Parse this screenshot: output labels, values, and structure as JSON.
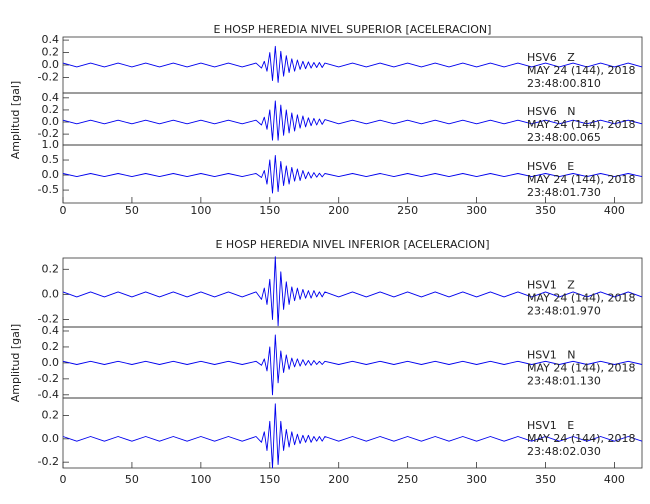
{
  "chart_data": [
    {
      "type": "line",
      "title": "E HOSP HEREDIA NIVEL SUPERIOR [ACELERACION]",
      "ylabel": "Amplitud [gal]",
      "xlim": [
        0,
        420
      ],
      "xticks": [
        0,
        50,
        100,
        150,
        200,
        250,
        300,
        350,
        400
      ],
      "x": [
        0,
        10,
        20,
        30,
        40,
        50,
        60,
        70,
        80,
        90,
        100,
        110,
        120,
        130,
        140,
        144,
        146,
        148,
        150,
        152,
        154,
        156,
        158,
        160,
        162,
        164,
        166,
        168,
        170,
        172,
        174,
        176,
        178,
        180,
        182,
        184,
        186,
        188,
        190,
        200,
        210,
        220,
        230,
        240,
        250,
        260,
        270,
        280,
        290,
        300,
        310,
        320,
        330,
        340,
        350,
        360,
        370,
        380,
        390,
        400,
        410,
        420
      ],
      "panels": [
        {
          "label": "HSV6   Z",
          "date": "MAY 24 (144), 2018",
          "time": "23:48:00.810",
          "color": "#0000ee",
          "ylim": [
            -0.45,
            0.45
          ],
          "yticks": [
            0.4,
            0.2,
            {
              "value": 0,
              "label": "0.0"
            },
            -0.2
          ],
          "values": [
            0.03,
            -0.03,
            0.03,
            -0.03,
            0.03,
            -0.03,
            0.03,
            -0.03,
            0.03,
            -0.03,
            0.03,
            -0.03,
            0.03,
            -0.03,
            0.03,
            -0.05,
            0.06,
            -0.1,
            0.2,
            -0.25,
            0.3,
            -0.28,
            0.22,
            -0.18,
            0.15,
            -0.12,
            0.1,
            -0.1,
            0.08,
            -0.07,
            0.06,
            -0.06,
            0.05,
            -0.05,
            0.04,
            -0.04,
            0.04,
            -0.04,
            0.03,
            -0.03,
            0.03,
            -0.03,
            0.03,
            -0.03,
            0.03,
            -0.03,
            0.03,
            -0.03,
            0.03,
            -0.03,
            0.03,
            -0.03,
            0.03,
            -0.03,
            0.03,
            -0.03,
            0.03,
            -0.03,
            0.03,
            -0.03,
            0.03,
            -0.03
          ]
        },
        {
          "label": "HSV6   N",
          "date": "MAY 24 (144), 2018",
          "time": "23:48:00.065",
          "color": "#0000ee",
          "ylim": [
            -0.38,
            0.48
          ],
          "yticks": [
            0.4,
            0.2,
            {
              "value": 0,
              "label": "0.0"
            },
            -0.2
          ],
          "values": [
            0.03,
            -0.03,
            0.03,
            -0.03,
            0.03,
            -0.03,
            0.03,
            -0.03,
            0.03,
            -0.03,
            0.03,
            -0.03,
            0.03,
            -0.03,
            0.03,
            -0.05,
            0.08,
            -0.12,
            0.2,
            -0.3,
            0.35,
            -0.3,
            0.28,
            -0.22,
            0.2,
            -0.18,
            0.15,
            -0.15,
            0.12,
            -0.1,
            0.1,
            -0.08,
            0.07,
            -0.06,
            0.06,
            -0.05,
            0.05,
            -0.04,
            0.04,
            -0.03,
            0.03,
            -0.03,
            0.03,
            -0.03,
            0.03,
            -0.03,
            0.03,
            -0.03,
            0.03,
            -0.03,
            0.03,
            -0.03,
            0.03,
            -0.03,
            0.03,
            -0.03,
            0.03,
            -0.03,
            0.03,
            -0.03,
            0.03,
            -0.03
          ]
        },
        {
          "label": "HSV6   E",
          "date": "MAY 24 (144), 2018",
          "time": "23:48:01.730",
          "color": "#0000ee",
          "ylim": [
            -0.93,
            1.0
          ],
          "yticks": [
            {
              "value": 1,
              "label": "1.0"
            },
            0.5,
            {
              "value": 0,
              "label": "0.0"
            },
            -0.5
          ],
          "values": [
            0.05,
            -0.05,
            0.05,
            -0.05,
            0.05,
            -0.05,
            0.05,
            -0.05,
            0.05,
            -0.05,
            0.05,
            -0.05,
            0.05,
            -0.05,
            0.05,
            -0.08,
            0.15,
            -0.3,
            0.5,
            -0.6,
            0.65,
            -0.55,
            0.45,
            -0.35,
            0.3,
            -0.3,
            0.25,
            -0.2,
            0.2,
            -0.18,
            0.15,
            -0.12,
            0.1,
            -0.1,
            0.08,
            -0.07,
            0.06,
            -0.06,
            0.05,
            -0.05,
            0.05,
            -0.05,
            0.05,
            -0.05,
            0.05,
            -0.05,
            0.05,
            -0.05,
            0.05,
            -0.05,
            0.05,
            -0.05,
            0.05,
            -0.05,
            0.05,
            -0.05,
            0.05,
            -0.05,
            0.05,
            -0.05,
            0.05,
            -0.05
          ]
        }
      ]
    },
    {
      "type": "line",
      "title": "E HOSP HEREDIA NIVEL INFERIOR [ACELERACION]",
      "ylabel": "Amplitud [gal]",
      "xlim": [
        0,
        420
      ],
      "xticks": [
        0,
        50,
        100,
        150,
        200,
        250,
        300,
        350,
        400
      ],
      "x": [
        0,
        10,
        20,
        30,
        40,
        50,
        60,
        70,
        80,
        90,
        100,
        110,
        120,
        130,
        140,
        144,
        146,
        148,
        150,
        152,
        154,
        156,
        158,
        160,
        162,
        164,
        166,
        168,
        170,
        172,
        174,
        176,
        178,
        180,
        182,
        184,
        186,
        188,
        190,
        200,
        210,
        220,
        230,
        240,
        250,
        260,
        270,
        280,
        290,
        300,
        310,
        320,
        330,
        340,
        350,
        360,
        370,
        380,
        390,
        400,
        410,
        420
      ],
      "panels": [
        {
          "label": "HSV1   Z",
          "date": "MAY 24 (144), 2018",
          "time": "23:48:01.970",
          "color": "#0000ee",
          "ylim": [
            -0.26,
            0.29
          ],
          "yticks": [
            0.2,
            {
              "value": 0,
              "label": "0.0"
            },
            -0.2
          ],
          "values": [
            0.02,
            -0.02,
            0.02,
            -0.02,
            0.02,
            -0.02,
            0.02,
            -0.02,
            0.02,
            -0.02,
            0.02,
            -0.02,
            0.02,
            -0.02,
            0.02,
            -0.04,
            0.05,
            -0.08,
            0.12,
            -0.2,
            0.3,
            -0.25,
            0.18,
            -0.12,
            0.1,
            -0.08,
            0.06,
            -0.05,
            0.05,
            -0.04,
            0.04,
            -0.03,
            0.03,
            -0.03,
            0.03,
            -0.02,
            0.02,
            -0.02,
            0.02,
            -0.02,
            0.02,
            -0.02,
            0.02,
            -0.02,
            0.02,
            -0.02,
            0.02,
            -0.02,
            0.02,
            -0.02,
            0.02,
            -0.02,
            0.02,
            -0.02,
            0.02,
            -0.02,
            0.02,
            -0.02,
            0.02,
            -0.02,
            0.02,
            -0.02
          ]
        },
        {
          "label": "HSV1   N",
          "date": "MAY 24 (144), 2018",
          "time": "23:48:01.130",
          "color": "#0000ee",
          "ylim": [
            -0.44,
            0.45
          ],
          "yticks": [
            0.4,
            0.2,
            {
              "value": 0,
              "label": "0.0"
            },
            -0.2,
            -0.4
          ],
          "values": [
            0.02,
            -0.02,
            0.02,
            -0.02,
            0.02,
            -0.02,
            0.02,
            -0.02,
            0.02,
            -0.02,
            0.02,
            -0.02,
            0.02,
            -0.02,
            0.02,
            -0.03,
            0.05,
            -0.1,
            0.2,
            -0.4,
            0.35,
            -0.25,
            0.15,
            -0.12,
            0.1,
            -0.08,
            0.06,
            -0.05,
            0.05,
            -0.04,
            0.04,
            -0.03,
            0.03,
            -0.03,
            0.03,
            -0.02,
            0.02,
            -0.02,
            0.02,
            -0.02,
            0.02,
            -0.02,
            0.02,
            -0.02,
            0.02,
            -0.02,
            0.02,
            -0.02,
            0.02,
            -0.02,
            0.02,
            -0.02,
            0.02,
            -0.02,
            0.02,
            -0.02,
            0.02,
            -0.02,
            0.02,
            -0.02,
            0.02,
            -0.02
          ]
        },
        {
          "label": "HSV1   E",
          "date": "MAY 24 (144), 2018",
          "time": "23:48:02.030",
          "color": "#0000ee",
          "ylim": [
            -0.25,
            0.35
          ],
          "yticks": [
            0.2,
            {
              "value": 0,
              "label": "0.0"
            },
            -0.2
          ],
          "values": [
            0.02,
            -0.02,
            0.02,
            -0.02,
            0.02,
            -0.02,
            0.02,
            -0.02,
            0.02,
            -0.02,
            0.02,
            -0.02,
            0.02,
            -0.02,
            0.02,
            -0.03,
            0.06,
            -0.1,
            0.15,
            -0.25,
            0.3,
            -0.22,
            0.15,
            -0.1,
            0.08,
            -0.07,
            0.06,
            -0.05,
            0.04,
            -0.04,
            0.03,
            -0.03,
            0.03,
            -0.03,
            0.02,
            -0.02,
            0.02,
            -0.02,
            0.02,
            -0.02,
            0.02,
            -0.02,
            0.02,
            -0.02,
            0.02,
            -0.02,
            0.02,
            -0.02,
            0.02,
            -0.02,
            0.02,
            -0.02,
            0.02,
            -0.02,
            0.02,
            -0.02,
            0.02,
            -0.02,
            0.02,
            -0.02,
            0.02,
            -0.02
          ]
        }
      ]
    }
  ]
}
